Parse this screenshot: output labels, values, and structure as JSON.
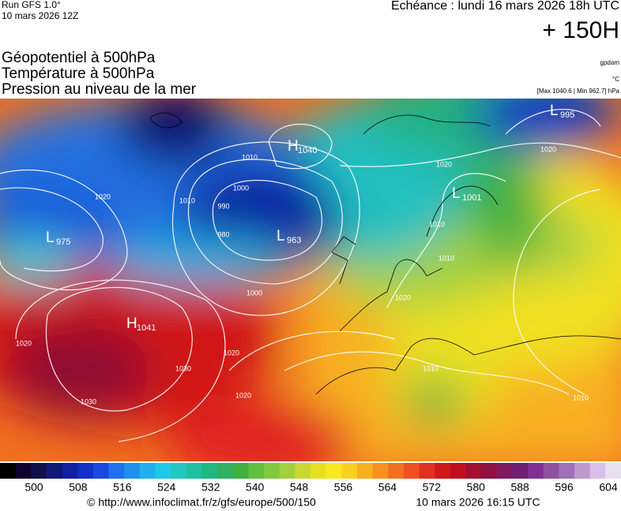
{
  "header": {
    "run": "Run GFS 1.0°",
    "run_date": "10 mars 2026 12Z",
    "valid": "Echéance : lundi 16 mars 2026 18h UTC",
    "lead": "+ 150H"
  },
  "legend": {
    "lines": [
      "Géopotentiel à 500hPa",
      "Température à 500hPa",
      "Pression au niveau de la mer"
    ],
    "units": [
      "gpdam",
      "°C",
      "[Max 1040.6 | Min 962.7] hPa"
    ]
  },
  "pressure_centers": [
    {
      "type": "L",
      "value": 995
    },
    {
      "type": "H",
      "value": 1040
    },
    {
      "type": "L",
      "value": 1001
    },
    {
      "type": "L",
      "value": 975
    },
    {
      "type": "L",
      "value": 963
    },
    {
      "type": "H",
      "value": 1041
    }
  ],
  "isobar_labels": [
    1020,
    1010,
    1000,
    990,
    980,
    1010,
    1020,
    1000,
    1020,
    1030,
    1030,
    1020,
    1020,
    1010,
    1020,
    1010,
    1010,
    1020,
    1010
  ],
  "colorbar": {
    "ticks": [
      500,
      508,
      516,
      524,
      532,
      540,
      548,
      556,
      564,
      572,
      580,
      588,
      596,
      604
    ]
  },
  "footer": {
    "url": "© http://www.infoclimat.fr/z/gfs/europe/500/150",
    "issued": "10 mars 2026 16:15 UTC"
  }
}
